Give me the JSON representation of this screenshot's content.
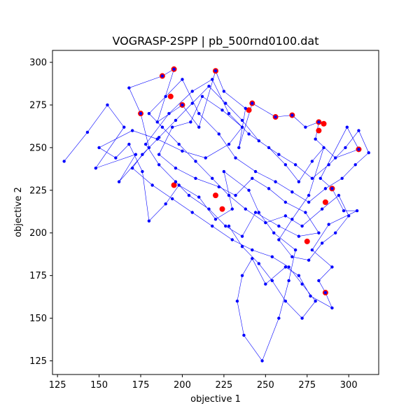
{
  "chart_data": {
    "type": "scatter",
    "title": "VOGRASP-2SPP | pb_500rnd0100.dat",
    "xlabel": "objective 1",
    "ylabel": "objective 2",
    "xlim": [
      122,
      318
    ],
    "ylim": [
      117,
      307
    ],
    "xticks": [
      125,
      150,
      175,
      200,
      225,
      250,
      275,
      300
    ],
    "yticks": [
      125,
      150,
      175,
      200,
      225,
      250,
      275,
      300
    ],
    "grid": false,
    "colors": {
      "path": "#0000ff",
      "points": "#0000ff",
      "highlight": "#ff0000"
    },
    "series": [
      {
        "role": "search-path",
        "points": [
          [
            129,
            242
          ],
          [
            143,
            259
          ],
          [
            155,
            275
          ],
          [
            165,
            262
          ],
          [
            148,
            238
          ],
          [
            172,
            246
          ],
          [
            162,
            230
          ],
          [
            180,
            250
          ],
          [
            175,
            270
          ],
          [
            168,
            285
          ],
          [
            188,
            292
          ],
          [
            195,
            296
          ],
          [
            185,
            265
          ],
          [
            200,
            275
          ],
          [
            210,
            262
          ],
          [
            220,
            295
          ],
          [
            225,
            283
          ],
          [
            238,
            273
          ],
          [
            234,
            250
          ],
          [
            242,
            276
          ],
          [
            256,
            268
          ],
          [
            266,
            269
          ],
          [
            274,
            262
          ],
          [
            282,
            265
          ],
          [
            280,
            255
          ],
          [
            292,
            244
          ],
          [
            306,
            249
          ],
          [
            299,
            262
          ],
          [
            283,
            232
          ],
          [
            290,
            226
          ],
          [
            297,
            213
          ],
          [
            305,
            213
          ],
          [
            288,
            205
          ],
          [
            278,
            190
          ],
          [
            290,
            180
          ],
          [
            282,
            172
          ],
          [
            286,
            165
          ],
          [
            290,
            156
          ],
          [
            277,
            163
          ],
          [
            270,
            175
          ],
          [
            262,
            180
          ],
          [
            250,
            170
          ],
          [
            242,
            185
          ],
          [
            236,
            175
          ],
          [
            233,
            160
          ],
          [
            237,
            140
          ],
          [
            248,
            125
          ],
          [
            258,
            150
          ],
          [
            264,
            172
          ],
          [
            268,
            190
          ],
          [
            255,
            200
          ],
          [
            246,
            212
          ],
          [
            240,
            225
          ],
          [
            225,
            236
          ],
          [
            230,
            214
          ],
          [
            220,
            208
          ],
          [
            210,
            221
          ],
          [
            198,
            228
          ],
          [
            190,
            217
          ],
          [
            180,
            207
          ],
          [
            176,
            236
          ],
          [
            168,
            252
          ],
          [
            160,
            244
          ],
          [
            150,
            250
          ],
          [
            170,
            260
          ],
          [
            185,
            255
          ],
          [
            200,
            248
          ],
          [
            214,
            244
          ],
          [
            228,
            252
          ],
          [
            236,
            262
          ],
          [
            224,
            272
          ],
          [
            212,
            280
          ],
          [
            205,
            265
          ],
          [
            194,
            262
          ],
          [
            186,
            246
          ],
          [
            196,
            238
          ],
          [
            208,
            232
          ],
          [
            222,
            227
          ],
          [
            232,
            222
          ],
          [
            242,
            232
          ],
          [
            252,
            226
          ],
          [
            262,
            218
          ],
          [
            274,
            212
          ],
          [
            282,
            200
          ],
          [
            270,
            198
          ],
          [
            258,
            204
          ],
          [
            244,
            212
          ],
          [
            236,
            198
          ],
          [
            226,
            204
          ],
          [
            216,
            214
          ],
          [
            204,
            222
          ],
          [
            196,
            230
          ],
          [
            186,
            240
          ],
          [
            178,
            252
          ],
          [
            192,
            270
          ],
          [
            206,
            283
          ],
          [
            218,
            290
          ],
          [
            228,
            270
          ],
          [
            240,
            258
          ],
          [
            252,
            250
          ],
          [
            262,
            240
          ],
          [
            270,
            230
          ],
          [
            278,
            242
          ],
          [
            285,
            250
          ],
          [
            276,
            222
          ],
          [
            266,
            208
          ],
          [
            258,
            196
          ],
          [
            266,
            186
          ],
          [
            276,
            184
          ],
          [
            284,
            194
          ],
          [
            292,
            200
          ],
          [
            300,
            210
          ],
          [
            294,
            222
          ],
          [
            284,
            214
          ],
          [
            272,
            204
          ],
          [
            262,
            210
          ],
          [
            250,
            206
          ],
          [
            238,
            214
          ],
          [
            228,
            222
          ],
          [
            218,
            232
          ],
          [
            208,
            242
          ],
          [
            198,
            252
          ],
          [
            188,
            262
          ],
          [
            180,
            270
          ],
          [
            190,
            280
          ],
          [
            200,
            290
          ],
          [
            210,
            270
          ],
          [
            222,
            258
          ],
          [
            232,
            244
          ],
          [
            244,
            236
          ],
          [
            256,
            230
          ],
          [
            266,
            224
          ],
          [
            276,
            218
          ],
          [
            286,
            226
          ],
          [
            296,
            232
          ],
          [
            304,
            240
          ],
          [
            312,
            247
          ],
          [
            306,
            260
          ],
          [
            298,
            250
          ],
          [
            288,
            240
          ],
          [
            278,
            232
          ],
          [
            268,
            240
          ],
          [
            258,
            246
          ],
          [
            246,
            254
          ],
          [
            236,
            266
          ],
          [
            226,
            276
          ],
          [
            216,
            286
          ],
          [
            206,
            276
          ],
          [
            196,
            266
          ],
          [
            186,
            256
          ],
          [
            176,
            246
          ],
          [
            170,
            238
          ],
          [
            182,
            228
          ],
          [
            194,
            220
          ],
          [
            206,
            212
          ],
          [
            218,
            204
          ],
          [
            230,
            196
          ],
          [
            242,
            190
          ],
          [
            254,
            186
          ],
          [
            264,
            180
          ],
          [
            272,
            170
          ],
          [
            280,
            160
          ],
          [
            272,
            150
          ],
          [
            262,
            160
          ],
          [
            254,
            172
          ],
          [
            246,
            182
          ],
          [
            236,
            192
          ],
          [
            228,
            204
          ]
        ]
      },
      {
        "role": "non-dominated-points",
        "points": [
          [
            188,
            292
          ],
          [
            195,
            296
          ],
          [
            220,
            295
          ],
          [
            175,
            270
          ],
          [
            193,
            280
          ],
          [
            242,
            276
          ],
          [
            240,
            272
          ],
          [
            256,
            268
          ],
          [
            266,
            269
          ],
          [
            282,
            265
          ],
          [
            285,
            264
          ],
          [
            282,
            260
          ],
          [
            306,
            249
          ],
          [
            290,
            226
          ],
          [
            286,
            218
          ],
          [
            275,
            195
          ],
          [
            286,
            165
          ],
          [
            195,
            228
          ],
          [
            220,
            222
          ],
          [
            224,
            214
          ],
          [
            200,
            275
          ]
        ]
      }
    ]
  }
}
